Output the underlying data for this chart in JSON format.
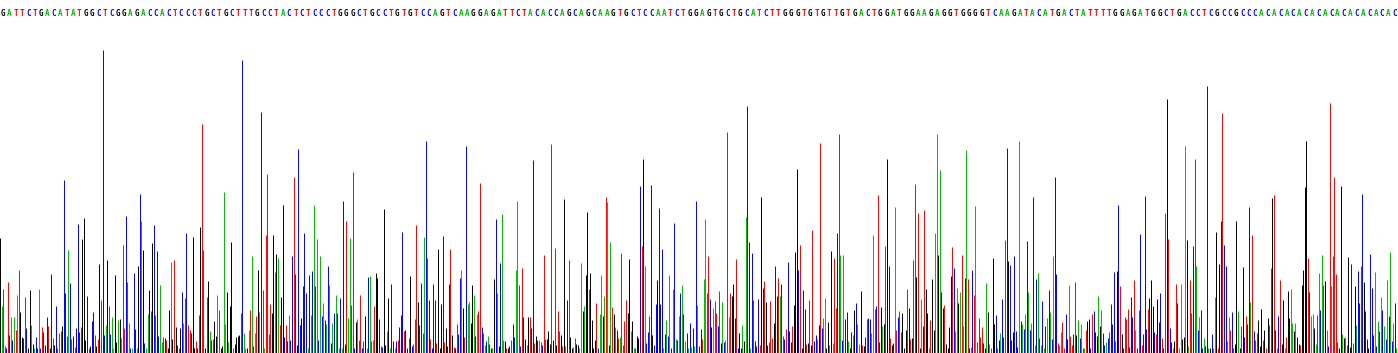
{
  "sequence": "GATTCTGACATATGGCTCGGAGACCACTCCCTGCTGCTTTGCCTACTCTCCCTGGGCTGCCTGTGTCCAGTCAAGGAGATTCTACACCAGCAGCAAGTGCTCCAATCTGGAGTGCTGCATCTTGGGTGTGTTGTGACTGGATGGAAGAGGTGGGGTCAAGATACATGACTATTTTGGAGATGGCTGACCTCGCCGCCCACACACACACACACACACACACACCTAATTC",
  "base_colors": {
    "G": "#000000",
    "A": "#00bb00",
    "T": "#ff0000",
    "C": "#0000ff"
  },
  "background_color": "#ffffff",
  "fig_width": 13.98,
  "fig_height": 3.53,
  "dpi": 100,
  "text_fontsize": 5.5,
  "num_bars": 900,
  "seed": 77
}
